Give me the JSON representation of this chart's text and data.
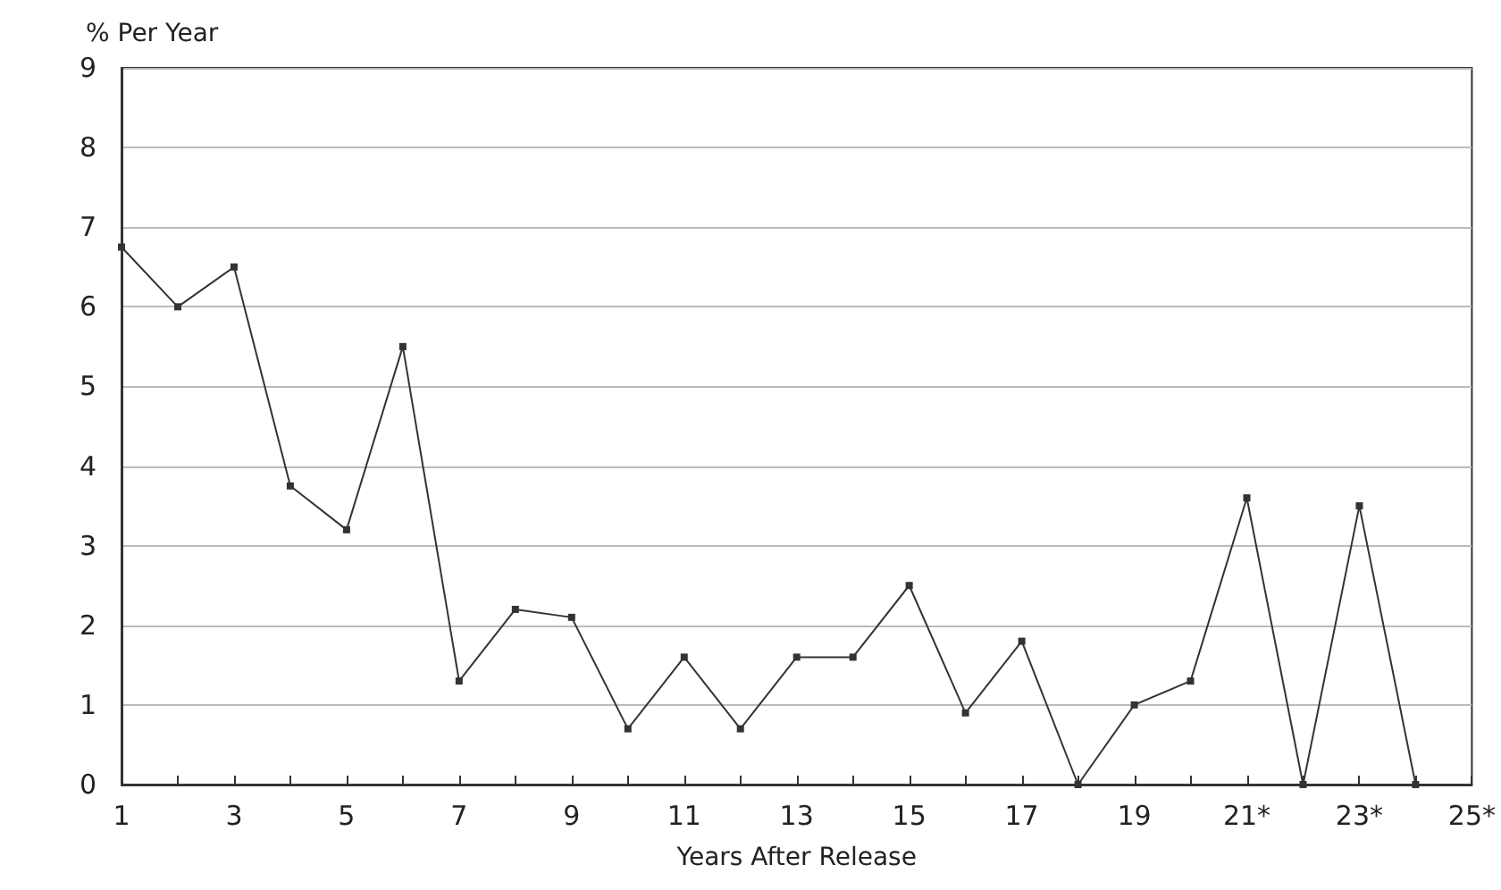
{
  "chart_data": {
    "type": "line",
    "xlabel": "Years After Release",
    "ylabel": "% Per Year",
    "x": [
      1,
      2,
      3,
      4,
      5,
      6,
      7,
      8,
      9,
      10,
      11,
      12,
      13,
      14,
      15,
      16,
      17,
      18,
      19,
      20,
      21,
      22,
      23,
      24
    ],
    "series": [
      {
        "color": "#333333",
        "values": [
          6.75,
          6.0,
          6.5,
          3.75,
          3.2,
          5.5,
          1.3,
          2.2,
          2.1,
          0.7,
          1.6,
          0.7,
          1.6,
          1.6,
          2.5,
          0.9,
          1.8,
          0,
          1.0,
          1.3,
          3.6,
          0,
          3.5,
          0
        ]
      }
    ],
    "xlim": [
      1,
      25
    ],
    "xticks": [
      1,
      {
        "value": 2,
        "label": null
      },
      3,
      {
        "value": 4,
        "label": null
      },
      5,
      {
        "value": 6,
        "label": null
      },
      7,
      {
        "value": 8,
        "label": null
      },
      9,
      {
        "value": 10,
        "label": null
      },
      11,
      {
        "value": 12,
        "label": null
      },
      13,
      {
        "value": 14,
        "label": null
      },
      15,
      {
        "value": 16,
        "label": null
      },
      17,
      {
        "value": 18,
        "label": null
      },
      19,
      {
        "value": 20,
        "label": null
      },
      {
        "value": 21,
        "label": "21*"
      },
      {
        "value": 22,
        "label": null
      },
      {
        "value": 23,
        "label": "23*"
      },
      {
        "value": 24,
        "label": null
      },
      {
        "value": 25,
        "label": "25*"
      }
    ],
    "ylim": [
      0,
      9
    ],
    "yticks": [
      0,
      1,
      2,
      3,
      4,
      5,
      6,
      7,
      8,
      9
    ],
    "grid": "y",
    "marker": "square",
    "line_style": "solid"
  }
}
